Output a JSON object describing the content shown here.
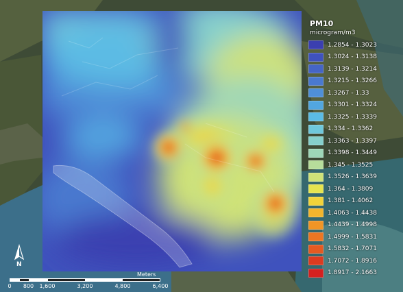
{
  "legend": {
    "title": "PM10",
    "units": "microgram/m3",
    "classes": [
      {
        "range": "1.2854 - 1.3023",
        "color": "#3b3fb0"
      },
      {
        "range": "1.3024 - 1.3138",
        "color": "#3f52bd"
      },
      {
        "range": "1.3139 - 1.3214",
        "color": "#4565c6"
      },
      {
        "range": "1.3215 - 1.3266",
        "color": "#4a79cf"
      },
      {
        "range": "1.3267 - 1.33",
        "color": "#4f8fd8"
      },
      {
        "range": "1.3301 - 1.3324",
        "color": "#52a6e0"
      },
      {
        "range": "1.3325 - 1.3339",
        "color": "#5bbbe4"
      },
      {
        "range": "1.334 - 1.3362",
        "color": "#6fc8dc"
      },
      {
        "range": "1.3363 - 1.3397",
        "color": "#86d0cc"
      },
      {
        "range": "1.3398 - 1.3449",
        "color": "#9ed7b8"
      },
      {
        "range": "1.345 - 1.3525",
        "color": "#b7dd9b"
      },
      {
        "range": "1.3526 - 1.3639",
        "color": "#cfe278"
      },
      {
        "range": "1.364 - 1.3809",
        "color": "#e6e44f"
      },
      {
        "range": "1.381 - 1.4062",
        "color": "#f2d33a"
      },
      {
        "range": "1.4063 - 1.4438",
        "color": "#f3b52d"
      },
      {
        "range": "1.4439 - 1.4998",
        "color": "#f19526"
      },
      {
        "range": "1.4999 - 1.5831",
        "color": "#ec7623"
      },
      {
        "range": "1.5832 - 1.7071",
        "color": "#e55a22"
      },
      {
        "range": "1.7072 - 1.8916",
        "color": "#dd3b20"
      },
      {
        "range": "1.8917 - 2.1663",
        "color": "#d4201f"
      }
    ]
  },
  "scale_bar": {
    "unit": "Meters",
    "ticks": [
      "0",
      "800",
      "1,600",
      "3,200",
      "4,800",
      "6,400"
    ]
  },
  "north_label": "N"
}
